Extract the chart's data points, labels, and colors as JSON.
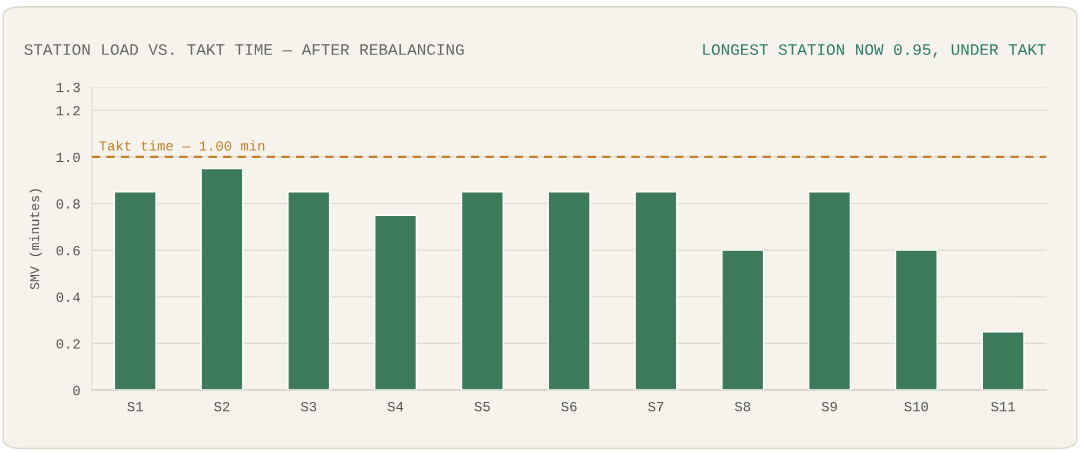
{
  "chart_data": {
    "type": "bar",
    "title": "STATION LOAD VS. TAKT TIME — AFTER REBALANCING",
    "subtitle": "LONGEST STATION NOW 0.95, UNDER TAKT",
    "ylabel": "SMV (minutes)",
    "categories": [
      "S1",
      "S2",
      "S3",
      "S4",
      "S5",
      "S6",
      "S7",
      "S8",
      "S9",
      "S10",
      "S11"
    ],
    "values": [
      0.85,
      0.95,
      0.85,
      0.75,
      0.85,
      0.85,
      0.85,
      0.6,
      0.85,
      0.6,
      0.25
    ],
    "color": "#3d7a5a",
    "ylim": [
      0,
      1.3
    ],
    "yticks": [
      0,
      0.2,
      0.4,
      0.6,
      0.8,
      {
        "value": 1,
        "label": "1.0"
      },
      1.2,
      1.3
    ],
    "grid": "y",
    "ref_lines": [
      {
        "axis": "y",
        "value": 1,
        "label": "Takt time — 1.00 min",
        "color": "#c47f2a",
        "line_style": "dashed"
      }
    ]
  }
}
